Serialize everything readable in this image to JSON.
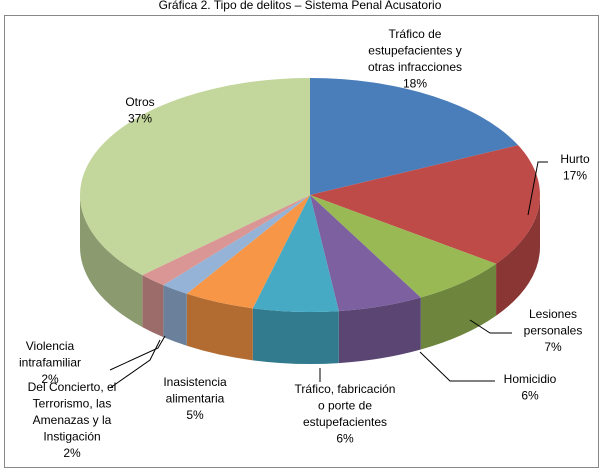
{
  "chart_data": {
    "type": "pie3d",
    "title": "Gráfica 2. Tipo de delitos – Sistema Penal Acusatorio",
    "categories": [
      [
        "Tráfico de",
        "estupefacientes y",
        "otras infracciones"
      ],
      [
        "Hurto"
      ],
      [
        "Lesiones",
        "personales"
      ],
      [
        "Homicidio"
      ],
      [
        "Tráfico, fabricación",
        "o porte de",
        "estupefacientes"
      ],
      [
        "Inasistencia",
        "alimentaria"
      ],
      [
        "Del Concierto, el",
        "Terrorismo, las",
        "Amenazas y la",
        "Instigación"
      ],
      [
        "Violencia",
        "intrafamiliar"
      ],
      [
        "Otros"
      ]
    ],
    "values": [
      18,
      17,
      7,
      6,
      6,
      5,
      2,
      2,
      37
    ],
    "value_labels": [
      "18%",
      "17%",
      "7%",
      "6%",
      "6%",
      "5%",
      "2%",
      "2%",
      "37%"
    ],
    "colors": [
      "#4a7ebb",
      "#be4b48",
      "#98b954",
      "#7d60a0",
      "#46aac5",
      "#f79646",
      "#95b3d7",
      "#d99694",
      "#c3d69b"
    ]
  }
}
